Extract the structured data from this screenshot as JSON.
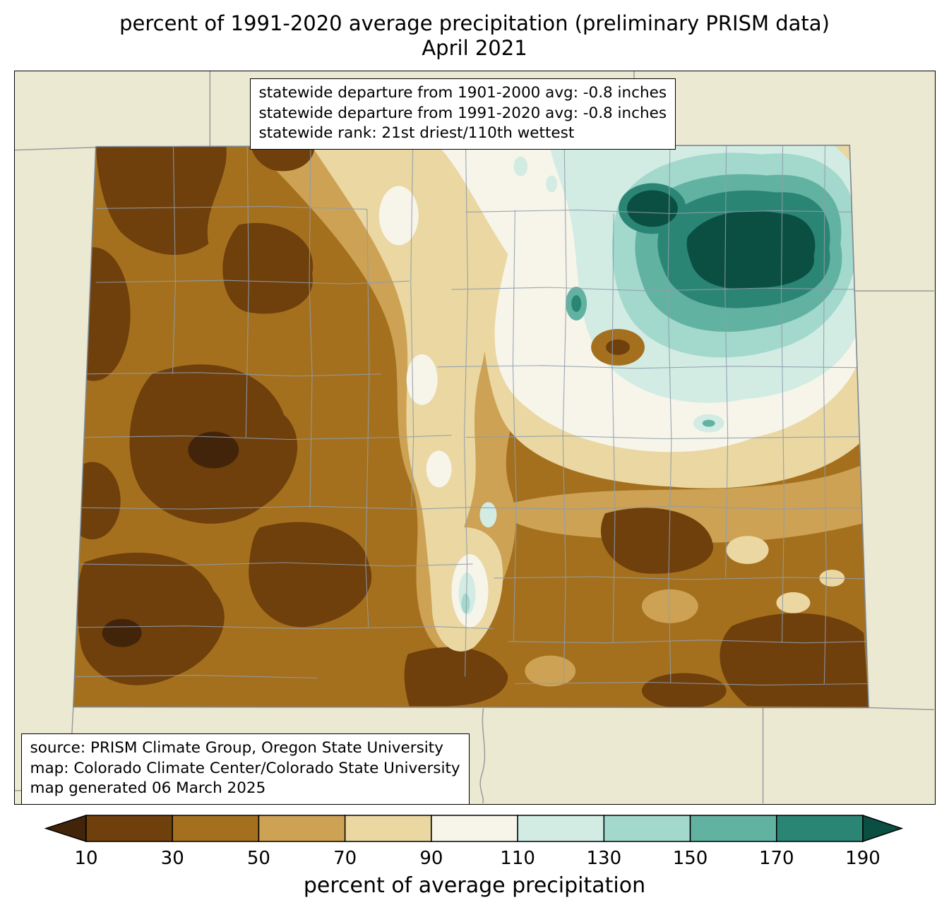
{
  "title": {
    "line1": "percent of 1991-2020 average precipitation (preliminary PRISM data)",
    "line2": "April 2021"
  },
  "stats_box": {
    "line1": "statewide departure from 1901-2000 avg: -0.8 inches",
    "line2": "statewide departure from 1991-2020 avg: -0.8 inches",
    "line3": "statewide rank: 21st driest/110th wettest"
  },
  "source_box": {
    "line1": "source: PRISM Climate Group, Oregon State University",
    "line2": "map: Colorado Climate Center/Colorado State University",
    "line3": "map generated 06 March 2025"
  },
  "colorbar": {
    "label": "percent of average precipitation",
    "ticks": [
      "10",
      "30",
      "50",
      "70",
      "90",
      "110",
      "130",
      "150",
      "170",
      "190"
    ]
  },
  "palette": {
    "under": "#42240a",
    "segments": [
      "#6f3f0c",
      "#a4701e",
      "#cda254",
      "#ead7a2",
      "#f7f5ea",
      "#d2ece4",
      "#a3d8cc",
      "#62b2a2",
      "#2b8575"
    ],
    "over": "#0b4f42",
    "map_background": "#ece9d3",
    "county_line": "#8f9dab",
    "state_line": "#9a9a9a",
    "colorado_border": "#7d8791"
  }
}
